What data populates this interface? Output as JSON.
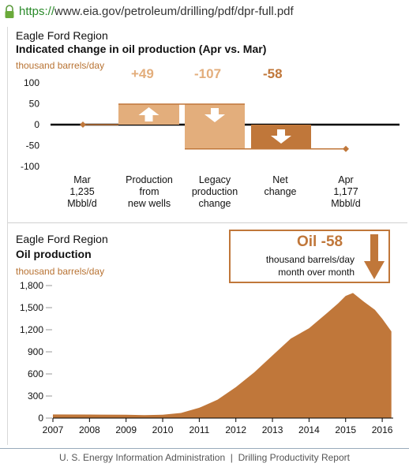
{
  "browser": {
    "url_protocol": "https://",
    "url_rest": "www.eia.gov/petroleum/drilling/pdf/dpr-full.pdf"
  },
  "top_chart": {
    "region": "Eagle Ford Region",
    "title": "Indicated change in oil production (Apr vs. Mar)",
    "unit": "thousand barrels/day",
    "value_labels": [
      "+49",
      "-107",
      "-58"
    ],
    "categories": [
      [
        "Mar",
        "1,235",
        "Mbbl/d"
      ],
      [
        "Production",
        "from",
        "new wells"
      ],
      [
        "Legacy",
        "production",
        "change"
      ],
      [
        "Net",
        "change"
      ],
      [
        "Apr",
        "1,177",
        "Mbbl/d"
      ]
    ]
  },
  "bottom_chart": {
    "region": "Eagle Ford Region",
    "title": "Oil production",
    "unit": "thousand barrels/day",
    "callout_value": "Oil -58",
    "callout_line1": "thousand barrels/day",
    "callout_line2": "month over month"
  },
  "colors": {
    "light_bar": "#e3ae7c",
    "dark_bar": "#c0773a",
    "area": "#c0773a",
    "unit_text": "#b87333"
  },
  "chart_data": [
    {
      "type": "bar",
      "subtype": "waterfall",
      "ylim": [
        -100,
        100
      ],
      "yticks": [
        "100",
        "50",
        "0",
        "-50",
        "-100"
      ],
      "points": [
        {
          "category": "Mar",
          "value": 0
        },
        {
          "category": "Production from new wells",
          "value": 49
        },
        {
          "category": "Legacy production change",
          "value": -107
        },
        {
          "category": "Net change",
          "value": -58
        },
        {
          "category": "Apr",
          "value": -58
        }
      ]
    },
    {
      "type": "area",
      "ylim": [
        0,
        1800
      ],
      "yticks": [
        "1,800",
        "1,500",
        "1,200",
        "900",
        "600",
        "300",
        "0"
      ],
      "xticks": [
        "2007",
        "2008",
        "2009",
        "2010",
        "2011",
        "2012",
        "2013",
        "2014",
        "2015",
        "2016"
      ],
      "xlim": [
        2007,
        2016.3
      ],
      "x": [
        2007.0,
        2008.0,
        2009.0,
        2009.5,
        2010.0,
        2010.5,
        2011.0,
        2011.5,
        2012.0,
        2012.5,
        2013.0,
        2013.5,
        2014.0,
        2014.5,
        2014.8,
        2015.0,
        2015.2,
        2015.5,
        2015.8,
        2016.0,
        2016.25
      ],
      "y": [
        50,
        48,
        45,
        40,
        45,
        70,
        140,
        250,
        420,
        620,
        850,
        1080,
        1220,
        1430,
        1560,
        1660,
        1700,
        1580,
        1470,
        1350,
        1177
      ]
    }
  ]
}
